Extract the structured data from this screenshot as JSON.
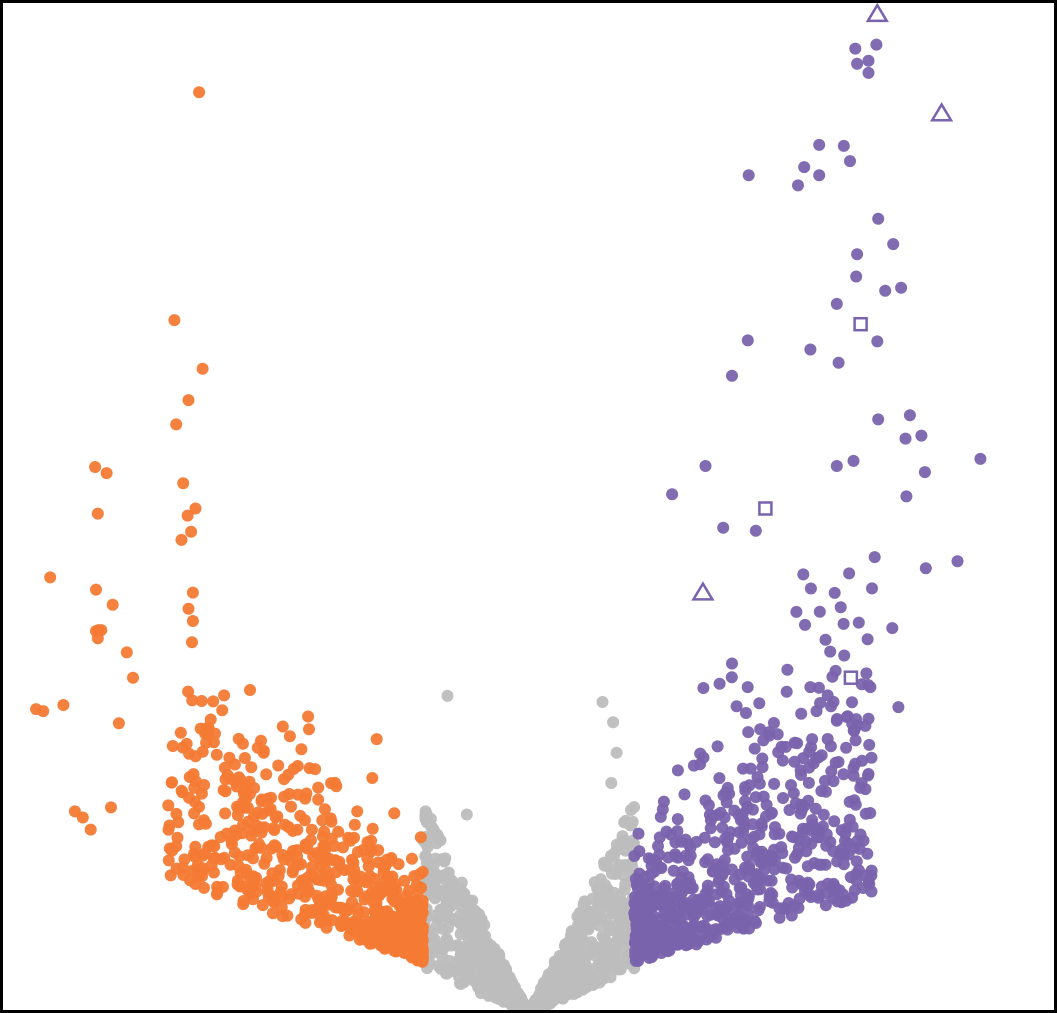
{
  "chart_data": {
    "type": "scatter",
    "title": "",
    "xlabel": "",
    "ylabel": "",
    "xlim": [
      -6,
      6
    ],
    "ylim": [
      0,
      10
    ],
    "grid": false,
    "legend": "none",
    "colors": {
      "down": "#f47a34",
      "neutral": "#bdbdbd",
      "up": "#7a63ad",
      "frame": "#000000"
    },
    "background_cloud": {
      "note_x_threshold": 1.2,
      "down_count": 650,
      "neutral_count": 900,
      "up_count": 700
    },
    "series": [
      {
        "name": "",
        "color": "#f47a34",
        "marker": "circle",
        "x": [
          -3.74,
          -4.02,
          -3.7,
          -3.86,
          -4.0,
          -4.92,
          -4.79,
          -4.89,
          -3.92,
          -3.78,
          -3.87,
          -3.83,
          -3.94,
          -5.43,
          -5.28,
          -4.91,
          -4.72,
          -4.91,
          -4.89,
          -3.81,
          -3.86,
          -3.81,
          -3.82,
          -5.59,
          -5.51,
          -5.15,
          -5.06,
          -4.97,
          -4.74,
          -4.65,
          -4.88,
          -4.85,
          -4.56,
          -4.49
        ],
        "y": [
          9.09,
          6.84,
          6.36,
          6.05,
          5.81,
          5.39,
          5.33,
          4.93,
          5.23,
          4.98,
          4.91,
          4.75,
          4.67,
          4.3,
          3.04,
          4.18,
          4.03,
          3.77,
          3.7,
          4.15,
          3.99,
          3.87,
          3.66,
          3.0,
          2.98,
          1.99,
          1.93,
          1.81,
          2.03,
          2.86,
          3.78,
          3.78,
          3.56,
          3.31
        ]
      },
      {
        "name": "",
        "color": "#bdbdbd",
        "marker": "circle",
        "x": [
          -0.92,
          -0.7,
          0.84,
          0.96,
          1.0,
          0.94
        ],
        "y": [
          3.13,
          1.96,
          3.07,
          2.87,
          2.57,
          2.27
        ]
      },
      {
        "name": "",
        "color": "#7a63ad",
        "marker": "circle",
        "x": [
          3.95,
          3.71,
          3.73,
          3.86,
          3.86,
          2.5,
          3.06,
          3.3,
          3.13,
          3.3,
          3.58,
          3.65,
          4.28,
          3.97,
          4.14,
          3.73,
          4.05,
          4.23,
          2.31,
          2.49,
          3.2,
          3.52,
          3.96,
          4.33,
          3.97,
          4.46,
          5.13,
          4.87,
          4.5,
          3.5,
          3.69,
          4.29,
          3.93,
          4.51,
          4.13,
          4.2,
          1.63,
          2.01,
          2.21,
          2.58,
          3.85,
          3.12,
          3.64,
          3.31,
          3.27,
          3.69,
          3.68,
          3.5,
          3.72,
          2.17,
          2.31
        ],
        "y": [
          9.56,
          9.52,
          9.37,
          9.28,
          9.4,
          8.27,
          8.17,
          8.27,
          8.35,
          8.57,
          8.56,
          8.41,
          5.67,
          7.84,
          7.59,
          7.49,
          7.13,
          7.16,
          6.29,
          6.64,
          6.55,
          6.42,
          6.63,
          5.9,
          5.86,
          5.7,
          5.47,
          4.46,
          5.34,
          5.4,
          5.45,
          5.1,
          4.5,
          4.39,
          3.8,
          3.02,
          5.12,
          5.4,
          4.79,
          4.76,
          3.69,
          4.33,
          4.34,
          3.06,
          2.98,
          2.42,
          1.84,
          7.0,
          7.27,
          3.25,
          3.45
        ]
      },
      {
        "name": "",
        "color": "#7a63ad",
        "marker": "triangle-open",
        "x": [
          3.96,
          4.69,
          1.98
        ],
        "y": [
          9.86,
          8.88,
          4.15
        ]
      },
      {
        "name": "",
        "color": "#7a63ad",
        "marker": "square-open",
        "x": [
          3.77,
          2.69,
          3.66
        ],
        "y": [
          6.8,
          4.98,
          3.31
        ]
      }
    ]
  }
}
